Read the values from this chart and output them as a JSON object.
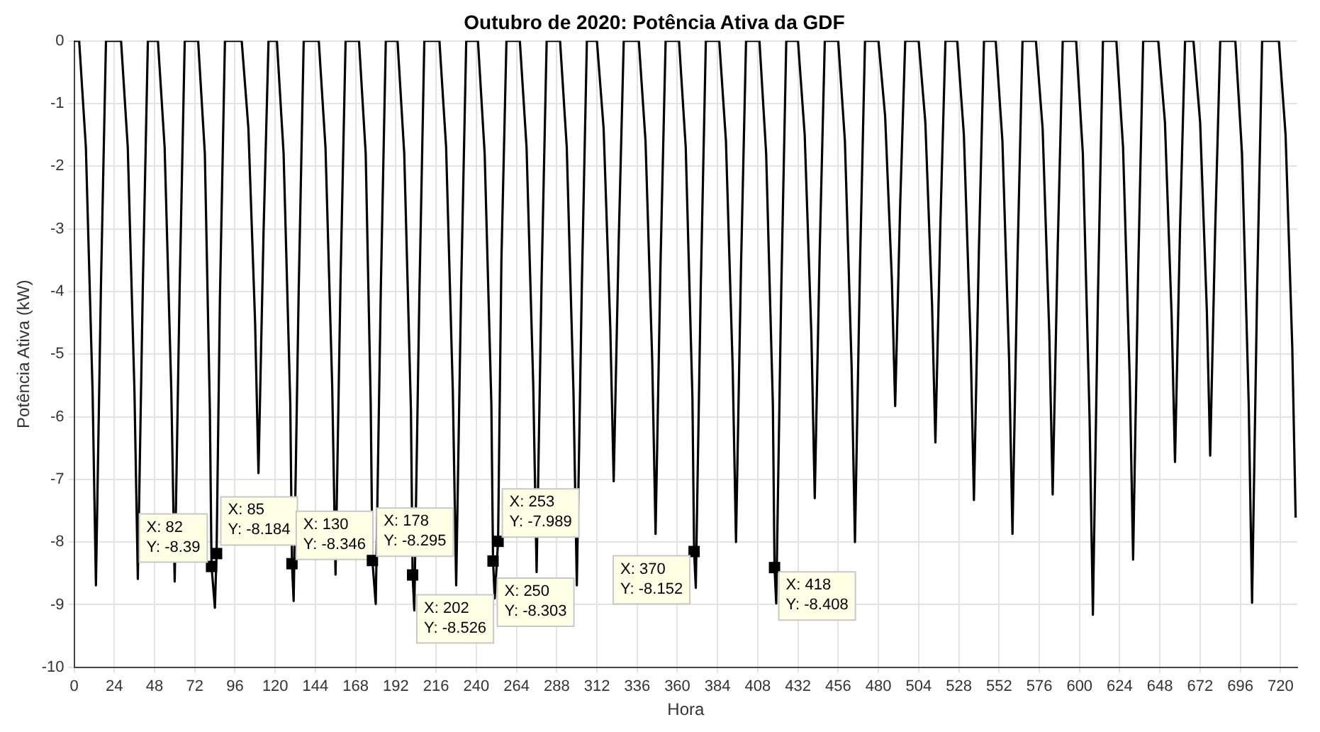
{
  "chart_data": {
    "type": "line",
    "title": "Outubro de 2020: Potência Ativa da GDF",
    "xlabel": "Hora",
    "ylabel": "Potência Ativa (kW)",
    "series": [
      {
        "color": "#000000",
        "x": [
          0,
          3,
          7,
          11,
          13,
          16,
          19,
          28,
          32,
          36,
          38,
          41,
          44,
          50,
          54,
          58,
          60,
          63,
          66,
          74,
          78,
          81,
          82,
          84,
          85,
          87,
          90,
          100,
          104,
          108,
          110,
          113,
          116,
          121,
          125,
          129,
          130,
          131,
          134,
          137,
          146,
          150,
          154,
          156,
          159,
          162,
          170,
          174,
          177,
          178,
          180,
          183,
          186,
          193,
          197,
          201,
          202,
          203,
          206,
          209,
          218,
          222,
          226,
          228,
          231,
          234,
          241,
          245,
          249,
          250,
          251,
          253,
          255,
          258,
          266,
          270,
          274,
          276,
          279,
          282,
          290,
          294,
          298,
          300,
          303,
          306,
          312,
          316,
          320,
          322,
          325,
          328,
          337,
          341,
          345,
          347,
          350,
          353,
          361,
          365,
          369,
          370,
          371,
          374,
          377,
          385,
          389,
          393,
          395,
          398,
          401,
          409,
          413,
          417,
          418,
          419,
          422,
          425,
          432,
          436,
          440,
          442,
          445,
          448,
          456,
          460,
          464,
          466,
          469,
          472,
          480,
          484,
          488,
          490,
          493,
          496,
          504,
          508,
          512,
          514,
          517,
          520,
          527,
          531,
          535,
          537,
          540,
          543,
          550,
          554,
          558,
          560,
          563,
          566,
          574,
          578,
          582,
          584,
          587,
          590,
          598,
          602,
          606,
          608,
          611,
          614,
          622,
          626,
          630,
          632,
          635,
          638,
          647,
          651,
          655,
          657,
          660,
          663,
          668,
          672,
          676,
          678,
          681,
          684,
          693,
          697,
          701,
          703,
          706,
          709,
          719,
          723,
          727,
          729
        ],
        "values": [
          0,
          0,
          -1.7,
          -5.6,
          -8.69,
          -3.9,
          0,
          0,
          -1.7,
          -5.6,
          -8.59,
          -3.9,
          0,
          0,
          -1.7,
          -5.6,
          -8.63,
          -3.9,
          0,
          0,
          -1.8,
          -5.9,
          -8.39,
          -9.05,
          -8.18,
          -4.1,
          0,
          0,
          -1.4,
          -4.5,
          -6.9,
          -3.1,
          0,
          0,
          -1.8,
          -5.8,
          -8.35,
          -8.94,
          -4.0,
          0,
          0,
          -1.7,
          -5.5,
          -8.52,
          -3.8,
          0,
          0,
          -1.8,
          -5.8,
          -8.3,
          -8.99,
          -4.0,
          0,
          0,
          -1.8,
          -5.9,
          -8.53,
          -9.09,
          -4.1,
          0,
          0,
          -1.7,
          -5.6,
          -8.69,
          -3.9,
          0,
          0,
          -1.8,
          -5.8,
          -8.3,
          -8.9,
          -7.99,
          -3.5,
          0,
          0,
          -1.7,
          -5.5,
          -8.48,
          -3.8,
          0,
          0,
          -1.7,
          -5.6,
          -8.69,
          -3.9,
          0,
          0,
          -1.4,
          -4.6,
          -7.03,
          -3.2,
          0,
          0,
          -1.6,
          -5.1,
          -7.87,
          -3.5,
          0,
          0,
          -1.7,
          -5.7,
          -8.15,
          -8.73,
          -3.9,
          0,
          0,
          -1.6,
          -5.2,
          -8.0,
          -3.6,
          0,
          0,
          -1.8,
          -5.8,
          -8.41,
          -8.98,
          -4.0,
          0,
          0,
          -1.5,
          -4.7,
          -7.3,
          -3.3,
          0,
          0,
          -1.6,
          -5.2,
          -8.0,
          -3.6,
          0,
          0,
          -1.2,
          -3.8,
          -5.83,
          -2.6,
          0,
          0,
          -1.3,
          -4.2,
          -6.41,
          -2.9,
          0,
          0,
          -1.5,
          -4.8,
          -7.33,
          -3.3,
          0,
          0,
          -1.6,
          -5.1,
          -7.87,
          -3.5,
          0,
          0,
          -1.4,
          -4.7,
          -7.24,
          -3.3,
          0,
          0,
          -1.8,
          -6.0,
          -9.16,
          -4.1,
          0,
          0,
          -1.7,
          -5.4,
          -8.28,
          -3.7,
          0,
          0,
          -1.3,
          -4.4,
          -6.72,
          -3.0,
          0,
          0,
          -1.3,
          -4.3,
          -6.62,
          -3.0,
          0,
          0,
          -1.8,
          -5.8,
          -8.97,
          -4.0,
          0,
          0,
          -1.5,
          -4.9,
          -7.61
        ]
      }
    ],
    "xlim": [
      0,
      730
    ],
    "xticks": [
      0,
      24,
      48,
      72,
      96,
      120,
      144,
      168,
      192,
      216,
      240,
      264,
      288,
      312,
      336,
      360,
      384,
      408,
      432,
      456,
      480,
      504,
      528,
      552,
      576,
      600,
      624,
      648,
      672,
      696,
      720
    ],
    "ylim": [
      -10,
      0
    ],
    "yticks": [
      -10,
      -9,
      -8,
      -7,
      -6,
      -5,
      -4,
      -3,
      -2,
      -1,
      0
    ],
    "grid": true,
    "legend": false,
    "marker": "none",
    "line_style": "solid",
    "annotations": [
      {
        "text": "X: 82\nY: -8.39",
        "x": 82,
        "y": -8.39
      },
      {
        "text": "X: 85\nY: -8.184",
        "x": 85,
        "y": -8.184
      },
      {
        "text": "X: 130\nY: -8.346",
        "x": 130,
        "y": -8.346
      },
      {
        "text": "X: 178\nY: -8.295",
        "x": 178,
        "y": -8.295
      },
      {
        "text": "X: 202\nY: -8.526",
        "x": 202,
        "y": -8.526
      },
      {
        "text": "X: 250\nY: -8.303",
        "x": 250,
        "y": -8.303
      },
      {
        "text": "X: 253\nY: -7.989",
        "x": 253,
        "y": -7.989
      },
      {
        "text": "X: 370\nY: -8.152",
        "x": 370,
        "y": -8.152
      },
      {
        "text": "X: 418\nY: -8.408",
        "x": 418,
        "y": -8.408
      }
    ]
  }
}
